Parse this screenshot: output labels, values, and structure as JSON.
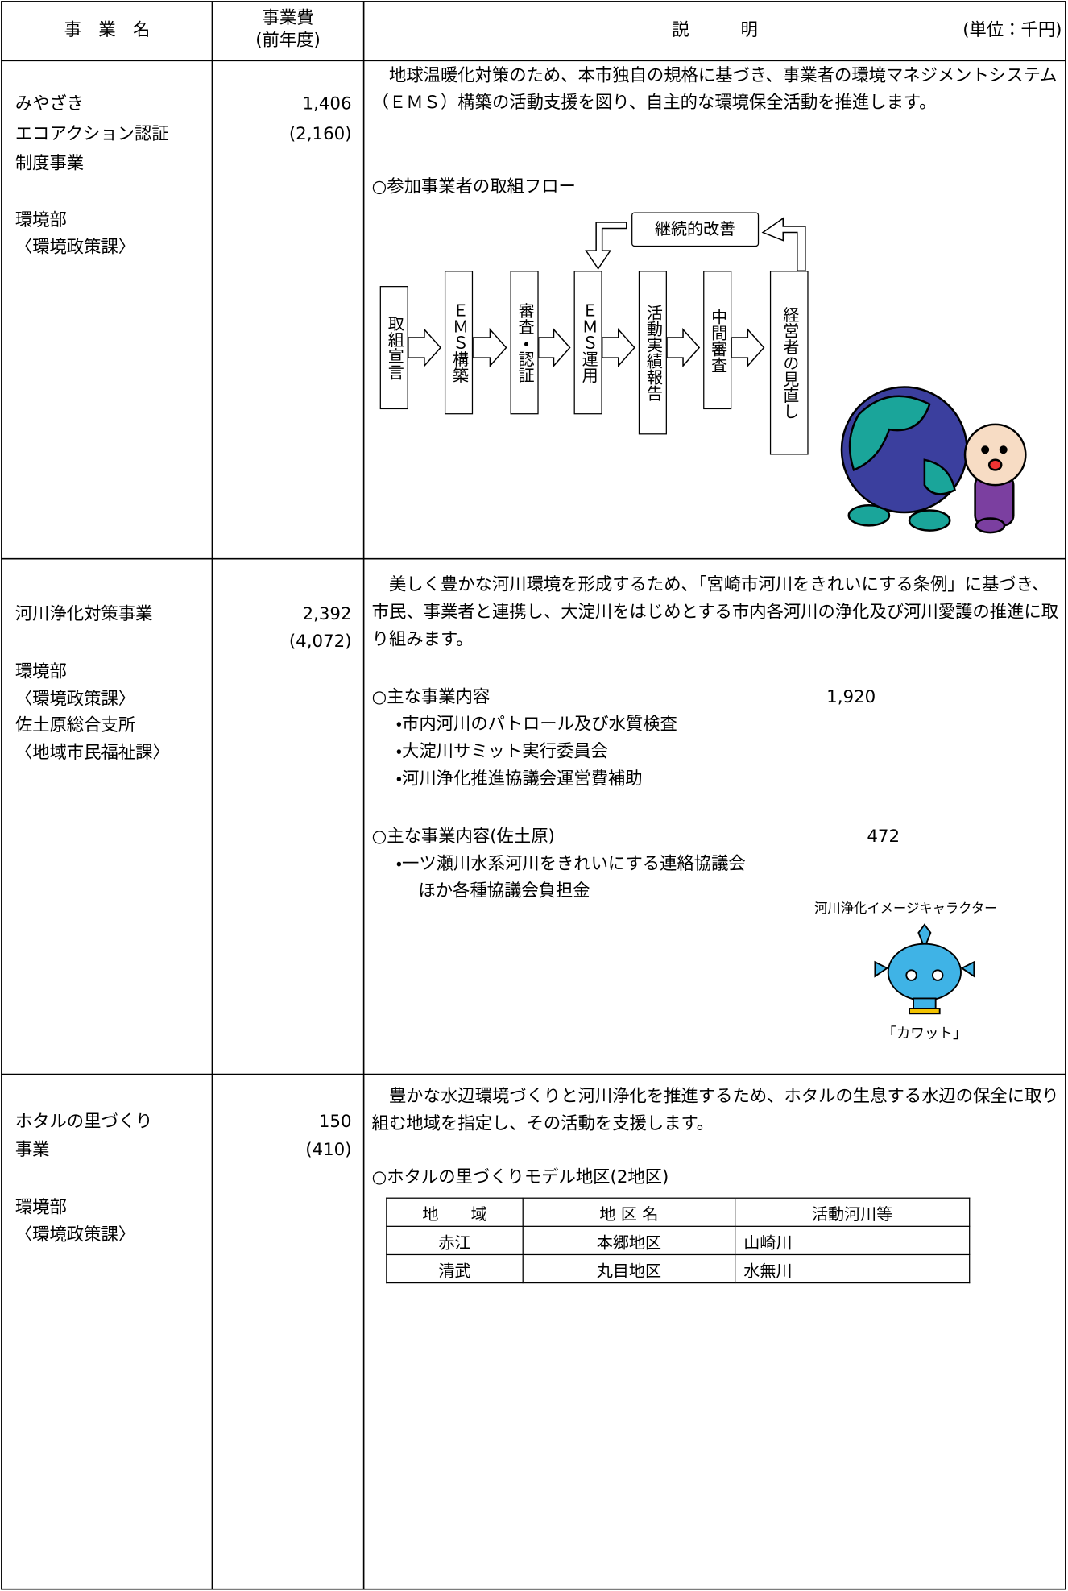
{
  "header": {
    "name_label": "事　業　名",
    "cost_label": "事業費",
    "cost_sub": "(前年度)",
    "description_label": "説　　　明",
    "unit": "(単位：千円)"
  },
  "rows": [
    {
      "name_lines": [
        "みやざき",
        "エコアクション認証",
        "制度事業"
      ],
      "departments": [
        "環境部",
        "〈環境政策課〉"
      ],
      "cost": "1,406",
      "previous_cost": "(2,160)",
      "description": "地球温暖化対策のため、本市独自の規格に基づき、事業者の環境マネジメントシステム（ＥＭＳ）構築の活動支援を図り、自主的な環境保全活動を推進します。",
      "subheading": "○参加事業者の取組フロー",
      "flow_loop": "継続的改善",
      "flow_steps": [
        "取組宣言",
        "ＥＭＳ構築",
        "審査・認証",
        "ＥＭＳ運用",
        "活動実績報告",
        "中間審査",
        "経営者の見直し"
      ]
    },
    {
      "name_lines": [
        "河川浄化対策事業"
      ],
      "departments": [
        "環境部",
        "〈環境政策課〉",
        "佐土原総合支所",
        "〈地域市民福祉課〉"
      ],
      "cost": "2,392",
      "previous_cost": "(4,072)",
      "description": "美しく豊かな河川環境を形成するため、「宮崎市河川をきれいにする条例」に基づき、市民、事業者と連携し、大淀川をはじめとする市内各河川の浄化及び河川愛護の推進に取り組みます。",
      "items": [
        {
          "heading": "○主な事業内容",
          "amount": "1,920",
          "bullets": [
            "・市内河川のパトロール及び水質検査",
            "・大淀川サミット実行委員会",
            "・河川浄化推進協議会運営費補助"
          ]
        },
        {
          "heading": "○主な事業内容(佐土原)",
          "amount": "472",
          "bullets": [
            "・一ツ瀬川水系河川をきれいにする連絡協議会",
            "ほか各種協議会負担金"
          ]
        }
      ],
      "character_caption": "河川浄化イメージキャラクター",
      "character_name": "「カワット」"
    },
    {
      "name_lines": [
        "ホタルの里づくり",
        "事業"
      ],
      "departments": [
        "環境部",
        "〈環境政策課〉"
      ],
      "cost": "150",
      "previous_cost": "(410)",
      "description": "豊かな水辺環境づくりと河川浄化を推進するため、ホタルの生息する水辺の保全に取り組む地域を指定し、その活動を支援します。",
      "subheading": "○ホタルの里づくりモデル地区(2地区)",
      "table": {
        "header": [
          "地　　域",
          "地 区 名",
          "活動河川等"
        ],
        "rows": [
          [
            "赤江",
            "本郷地区",
            "山崎川"
          ],
          [
            "清武",
            "丸目地区",
            "水無川"
          ]
        ]
      }
    }
  ]
}
